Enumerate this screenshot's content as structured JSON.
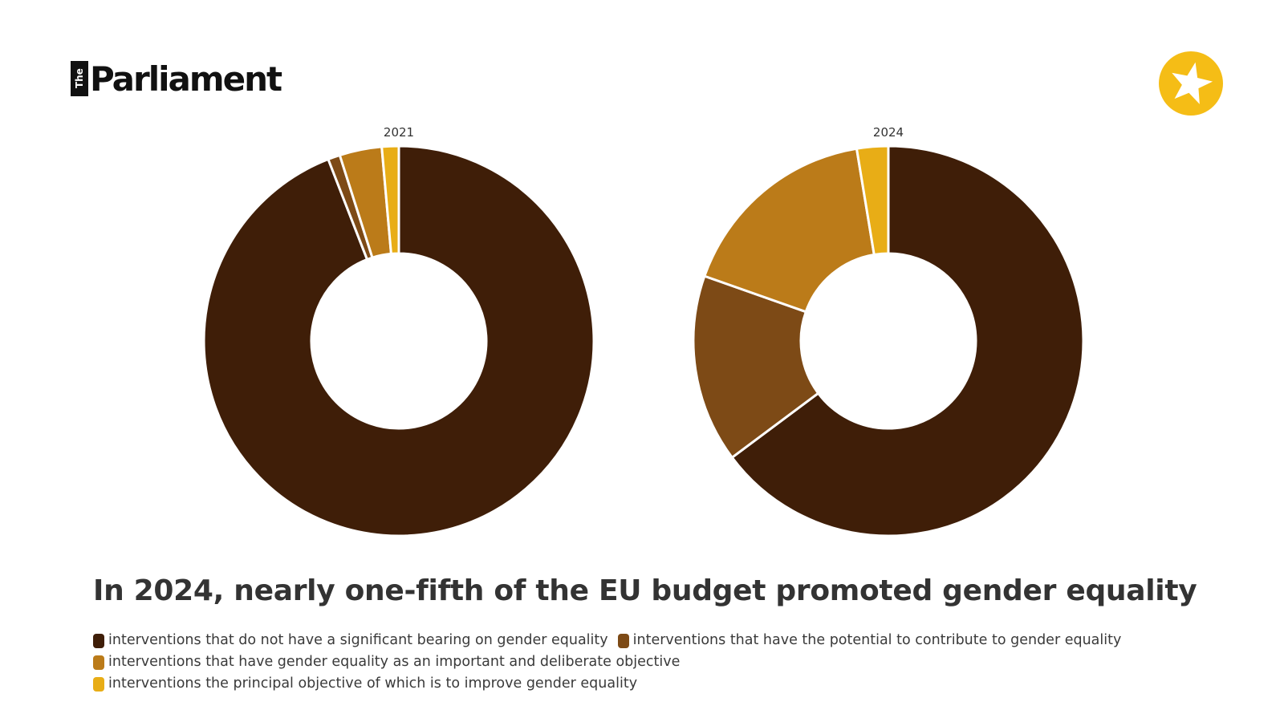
{
  "brand": {
    "logo_small": "The",
    "logo_main": "Parliament"
  },
  "colors": {
    "background": "#ffffff",
    "badge": "#f5bd16"
  },
  "chart_data": [
    {
      "type": "pie",
      "subtype": "donut",
      "title": "2021",
      "categories": [
        "interventions that do not have a significant bearing on gender equality",
        "interventions that have the potential to contribute to gender equality",
        "interventions that have gender equality as an important and deliberate objective",
        "interventions the principal objective of which is to improve gender equality"
      ],
      "values": [
        94.1,
        1.0,
        3.5,
        1.4
      ],
      "unit": "%"
    },
    {
      "type": "pie",
      "subtype": "donut",
      "title": "2024",
      "categories": [
        "interventions that do not have a significant bearing on gender equality",
        "interventions that have the potential to contribute to gender equality",
        "interventions that have gender equality as an important and deliberate objective",
        "interventions the principal objective of which is to improve gender equality"
      ],
      "values": [
        64.8,
        15.6,
        17.0,
        2.6
      ],
      "unit": "%"
    }
  ],
  "headline": "In 2024, nearly one-fifth of the EU budget promoted gender equality",
  "legend": [
    {
      "label": "interventions that do not have a significant bearing on gender equality",
      "color": "#3f1e08"
    },
    {
      "label": "interventions that have the potential to contribute to gender equality",
      "color": "#7d4a16"
    },
    {
      "label": "interventions that have gender equality as an important and deliberate objective",
      "color": "#bb7b19"
    },
    {
      "label": "interventions the principal objective of which is to improve gender equality",
      "color": "#e8ad16"
    }
  ]
}
